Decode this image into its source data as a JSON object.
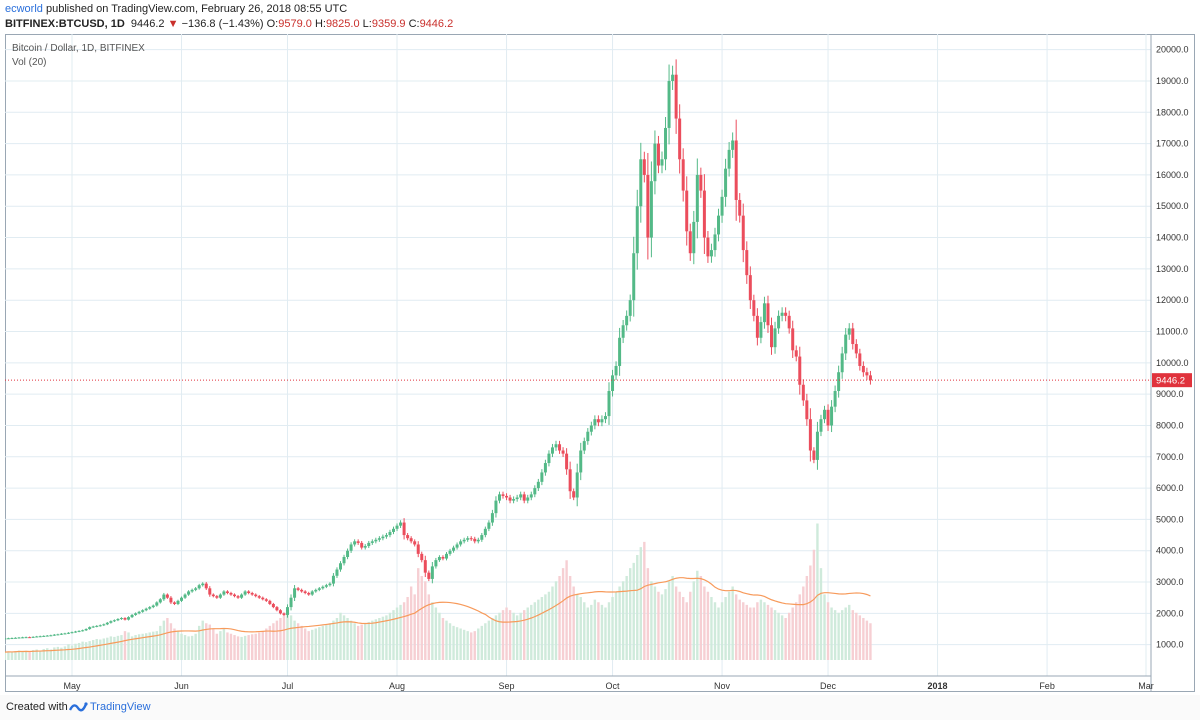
{
  "header": {
    "author": "ecworld",
    "publish_text": " published on TradingView.com, February 26, 2018 08:55 UTC",
    "symbol": "BITFINEX:BTCUSD, 1D",
    "last": "9446.2",
    "change_arrow": "▼",
    "change": "−136.8 (−1.43%)",
    "o_label": "O:",
    "o_value": "9579.0",
    "h_label": "H:",
    "h_value": "9825.0",
    "l_label": "L:",
    "l_value": "9359.9",
    "c_label": "C:",
    "c_value": "9446.2"
  },
  "legend": {
    "series": "Bitcoin / Dollar, 1D, BITFINEX",
    "indicator": "Vol (20)"
  },
  "price_label": "9446.2",
  "footer": {
    "created": "Created with",
    "brand": "TradingView"
  },
  "colors": {
    "up": "#53b987",
    "down": "#eb4d5c",
    "ma": "#f79a5b",
    "grid": "#e1ecf2",
    "last": "#e0323c"
  },
  "chart_data": {
    "type": "candlestick",
    "ylim": [
      0,
      20500
    ],
    "yticks": [
      1000,
      2000,
      3000,
      4000,
      5000,
      6000,
      7000,
      8000,
      9000,
      10000,
      11000,
      12000,
      13000,
      14000,
      15000,
      16000,
      17000,
      18000,
      19000,
      20000
    ],
    "x_tick_labels": [
      "May",
      "Jun",
      "Jul",
      "Aug",
      "Sep",
      "Oct",
      "Nov",
      "Dec",
      "2018",
      "Feb",
      "Mar"
    ],
    "x_tick_dates": [
      "2017-05-01",
      "2017-06-01",
      "2017-07-01",
      "2017-08-01",
      "2017-09-01",
      "2017-10-01",
      "2017-11-01",
      "2017-12-01",
      "2018-01-01",
      "2018-02-01",
      "2018-03-01"
    ],
    "start_date": "2017-04-12",
    "last_close": 9446.2,
    "closes": [
      1200,
      1205,
      1212,
      1220,
      1228,
      1235,
      1240,
      1238,
      1250,
      1262,
      1270,
      1280,
      1290,
      1300,
      1320,
      1330,
      1350,
      1360,
      1380,
      1400,
      1420,
      1440,
      1460,
      1500,
      1560,
      1580,
      1600,
      1620,
      1650,
      1700,
      1750,
      1780,
      1820,
      1850,
      1800,
      1880,
      1950,
      2000,
      2050,
      2100,
      2150,
      2200,
      2250,
      2350,
      2450,
      2600,
      2500,
      2350,
      2300,
      2400,
      2500,
      2600,
      2700,
      2750,
      2800,
      2900,
      2950,
      2800,
      2600,
      2550,
      2500,
      2600,
      2700,
      2650,
      2600,
      2550,
      2500,
      2600,
      2700,
      2650,
      2600,
      2550,
      2500,
      2450,
      2400,
      2300,
      2200,
      2100,
      2000,
      1950,
      2200,
      2500,
      2800,
      2750,
      2700,
      2650,
      2600,
      2700,
      2750,
      2800,
      2850,
      2900,
      2950,
      3200,
      3400,
      3600,
      3800,
      4000,
      4200,
      4300,
      4250,
      4100,
      4150,
      4250,
      4300,
      4350,
      4400,
      4450,
      4500,
      4600,
      4700,
      4800,
      4900,
      4500,
      4400,
      4300,
      4200,
      3900,
      3700,
      3300,
      3100,
      3500,
      3700,
      3800,
      3750,
      3900,
      4000,
      4100,
      4200,
      4300,
      4350,
      4400,
      4380,
      4300,
      4350,
      4500,
      4700,
      4900,
      5200,
      5600,
      5800,
      5750,
      5700,
      5600,
      5650,
      5700,
      5800,
      5600,
      5700,
      5800,
      6000,
      6200,
      6500,
      6800,
      7100,
      7300,
      7400,
      7200,
      7100,
      6600,
      5900,
      5700,
      6500,
      7200,
      7500,
      7800,
      8000,
      8200,
      8100,
      8200,
      8300,
      9100,
      9600,
      9900,
      10800,
      11200,
      11500,
      12000,
      13500,
      15000,
      16500,
      16000,
      14000,
      15800,
      17000,
      16300,
      16500,
      17500,
      19000,
      19200,
      17800,
      16500,
      15500,
      14200,
      13500,
      14500,
      16000,
      15500,
      14000,
      13400,
      13600,
      14100,
      14700,
      15300,
      16200,
      16800,
      17100,
      15200,
      14700,
      13600,
      12800,
      12000,
      11500,
      10800,
      11300,
      11900,
      11200,
      10500,
      11100,
      11500,
      11600,
      11500,
      11100,
      10400,
      10200,
      9300,
      8800,
      8200,
      7200,
      6900,
      7800,
      8200,
      8500,
      8000,
      8600,
      9100,
      9700,
      10300,
      10900,
      11100,
      10600,
      10300,
      9900,
      9700,
      9600,
      9446.2
    ],
    "volume": [
      300,
      320,
      300,
      340,
      360,
      330,
      350,
      300,
      380,
      400,
      360,
      420,
      450,
      400,
      480,
      500,
      470,
      520,
      600,
      550,
      620,
      650,
      700,
      680,
      720,
      760,
      800,
      780,
      820,
      850,
      900,
      880,
      920,
      950,
      1100,
      1050,
      900,
      950,
      980,
      1000,
      1020,
      1050,
      1080,
      1100,
      1300,
      1500,
      1600,
      1400,
      1200,
      1100,
      1000,
      950,
      900,
      920,
      1000,
      1300,
      1500,
      1400,
      1350,
      1200,
      1000,
      1100,
      1200,
      1050,
      1000,
      950,
      900,
      880,
      920,
      950,
      980,
      1000,
      1050,
      1100,
      1200,
      1300,
      1400,
      1500,
      1600,
      1700,
      1800,
      1700,
      1500,
      1400,
      1300,
      1200,
      1100,
      1150,
      1200,
      1250,
      1300,
      1350,
      1400,
      1500,
      1600,
      1800,
      1700,
      1600,
      1500,
      1400,
      1300,
      1350,
      1400,
      1450,
      1500,
      1550,
      1600,
      1650,
      1700,
      1800,
      1900,
      2000,
      2100,
      2200,
      2400,
      2800,
      2500,
      3500,
      3200,
      3000,
      2500,
      2200,
      2000,
      1800,
      1600,
      1500,
      1400,
      1300,
      1250,
      1200,
      1150,
      1100,
      1050,
      1100,
      1200,
      1300,
      1400,
      1500,
      1600,
      1700,
      1800,
      1900,
      2000,
      1900,
      1800,
      1700,
      1800,
      1900,
      2000,
      2100,
      2200,
      2300,
      2400,
      2500,
      2600,
      2800,
      3000,
      3200,
      3500,
      3800,
      3200,
      2800,
      2500,
      2400,
      2200,
      2000,
      2100,
      2300,
      2200,
      2100,
      2000,
      2200,
      2400,
      2600,
      2800,
      3000,
      3200,
      3500,
      3700,
      4000,
      4300,
      4500,
      3500,
      3000,
      2800,
      2600,
      2500,
      2700,
      3000,
      3200,
      2800,
      2600,
      2400,
      2200,
      2600,
      3000,
      3400,
      3200,
      2800,
      2600,
      2400,
      2200,
      2000,
      2200,
      2400,
      2600,
      2800,
      2500,
      2300,
      2200,
      2100,
      2000,
      2000,
      2200,
      2300,
      2200,
      2100,
      2000,
      1900,
      1800,
      1700,
      1600,
      1800,
      2000,
      2200,
      2500,
      2800,
      3200,
      3600,
      4200,
      5200,
      3500,
      2500,
      2200,
      2000,
      1900,
      1800,
      1900,
      2000,
      2100,
      1900,
      1800,
      1700,
      1600,
      1500,
      1400
    ]
  }
}
